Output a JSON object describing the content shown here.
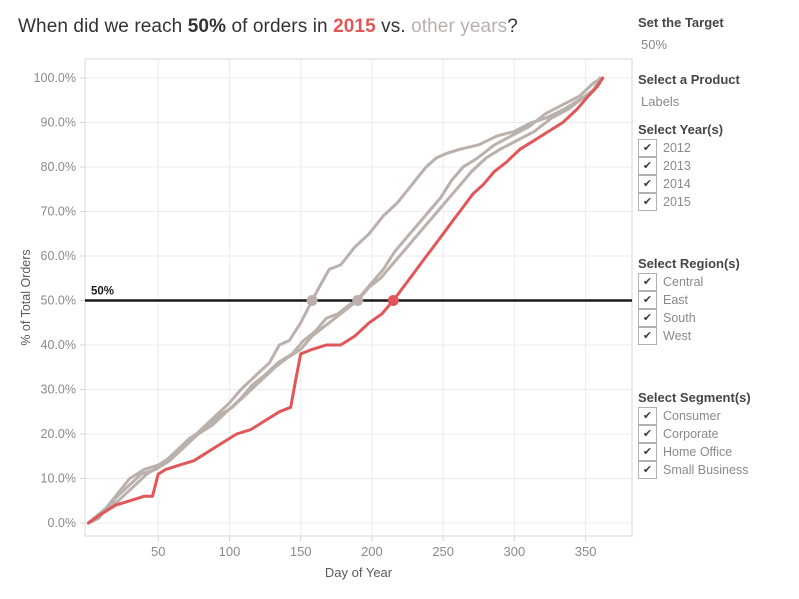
{
  "title": {
    "prefix": "When did we reach ",
    "target": "50%",
    "middle": " of orders in ",
    "year": "2015",
    "vs": " vs. ",
    "other": "other years",
    "suffix": "?"
  },
  "colors": {
    "accent_red": "#e15759",
    "accent_gray": "#bab0ac",
    "title_dark": "#333333",
    "grid": "#ececec",
    "border": "#d7d7d7",
    "tick_text": "#8a8a8a",
    "axis_title_text": "#5b5b5b",
    "target_line": "#1a1a1a"
  },
  "checkbox_glyph": "✔",
  "panel": {
    "target": {
      "label": "Set the Target",
      "value": "50%"
    },
    "product": {
      "label": "Select a Product",
      "value": "Labels"
    },
    "years": {
      "label": "Select Year(s)",
      "options": [
        {
          "label": "2012",
          "checked": true
        },
        {
          "label": "2013",
          "checked": true
        },
        {
          "label": "2014",
          "checked": true
        },
        {
          "label": "2015",
          "checked": true
        }
      ]
    },
    "regions": {
      "label": "Select Region(s)",
      "options": [
        {
          "label": "Central",
          "checked": true
        },
        {
          "label": "East",
          "checked": true
        },
        {
          "label": "South",
          "checked": true
        },
        {
          "label": "West",
          "checked": true
        }
      ]
    },
    "segments": {
      "label": "Select Segment(s)",
      "options": [
        {
          "label": "Consumer",
          "checked": true
        },
        {
          "label": "Corporate",
          "checked": true
        },
        {
          "label": "Home Office",
          "checked": true
        },
        {
          "label": "Small Business",
          "checked": true
        }
      ]
    }
  },
  "chart_data": {
    "type": "line",
    "xlabel": "Day of Year",
    "ylabel": "% of Total Orders",
    "xlim": [
      0,
      385
    ],
    "ylim": [
      0,
      100
    ],
    "x_ticks": [
      50,
      100,
      150,
      200,
      250,
      300,
      350
    ],
    "y_ticks": [
      0,
      10,
      20,
      30,
      40,
      50,
      60,
      70,
      80,
      90,
      100
    ],
    "grid": true,
    "target_line": {
      "value": 50,
      "label": "50%"
    },
    "series": [
      {
        "name": "2012",
        "color": "#bab0ac",
        "points": [
          [
            1,
            0
          ],
          [
            10,
            2
          ],
          [
            20,
            6
          ],
          [
            30,
            10
          ],
          [
            40,
            12
          ],
          [
            50,
            13
          ],
          [
            60,
            15
          ],
          [
            70,
            18
          ],
          [
            80,
            21
          ],
          [
            90,
            24
          ],
          [
            100,
            27
          ],
          [
            108,
            30
          ],
          [
            118,
            33
          ],
          [
            128,
            36
          ],
          [
            135,
            40
          ],
          [
            142,
            41
          ],
          [
            150,
            45
          ],
          [
            158,
            50
          ],
          [
            163,
            53
          ],
          [
            170,
            57
          ],
          [
            178,
            58
          ],
          [
            188,
            62
          ],
          [
            198,
            65
          ],
          [
            208,
            69
          ],
          [
            218,
            72
          ],
          [
            228,
            76
          ],
          [
            238,
            80
          ],
          [
            245,
            82
          ],
          [
            252,
            83
          ],
          [
            262,
            84
          ],
          [
            275,
            85
          ],
          [
            288,
            87
          ],
          [
            300,
            88
          ],
          [
            312,
            90
          ],
          [
            322,
            91
          ],
          [
            335,
            93
          ],
          [
            345,
            95
          ],
          [
            355,
            97
          ],
          [
            360,
            100
          ]
        ]
      },
      {
        "name": "2013",
        "color": "#bab0ac",
        "points": [
          [
            1,
            0
          ],
          [
            12,
            3
          ],
          [
            22,
            5
          ],
          [
            32,
            8
          ],
          [
            42,
            11
          ],
          [
            52,
            13
          ],
          [
            62,
            16
          ],
          [
            72,
            19
          ],
          [
            82,
            21
          ],
          [
            92,
            24
          ],
          [
            102,
            26
          ],
          [
            112,
            29
          ],
          [
            122,
            32
          ],
          [
            132,
            35
          ],
          [
            140,
            37
          ],
          [
            150,
            39
          ],
          [
            158,
            42
          ],
          [
            166,
            44
          ],
          [
            174,
            46
          ],
          [
            182,
            48
          ],
          [
            190,
            50
          ],
          [
            198,
            53
          ],
          [
            206,
            55
          ],
          [
            214,
            58
          ],
          [
            222,
            61
          ],
          [
            230,
            64
          ],
          [
            238,
            67
          ],
          [
            246,
            70
          ],
          [
            254,
            73
          ],
          [
            262,
            76
          ],
          [
            270,
            79
          ],
          [
            280,
            82
          ],
          [
            290,
            84
          ],
          [
            302,
            86
          ],
          [
            314,
            88
          ],
          [
            326,
            91
          ],
          [
            338,
            93
          ],
          [
            350,
            96
          ],
          [
            358,
            98
          ],
          [
            362,
            100
          ]
        ]
      },
      {
        "name": "2014",
        "color": "#bab0ac",
        "points": [
          [
            1,
            0
          ],
          [
            8,
            1
          ],
          [
            18,
            5
          ],
          [
            28,
            8
          ],
          [
            38,
            11
          ],
          [
            48,
            12
          ],
          [
            58,
            14
          ],
          [
            68,
            17
          ],
          [
            78,
            20
          ],
          [
            88,
            22
          ],
          [
            98,
            25
          ],
          [
            108,
            28
          ],
          [
            116,
            31
          ],
          [
            124,
            33
          ],
          [
            134,
            36
          ],
          [
            144,
            38
          ],
          [
            152,
            41
          ],
          [
            160,
            43
          ],
          [
            168,
            46
          ],
          [
            176,
            47
          ],
          [
            184,
            49
          ],
          [
            192,
            51
          ],
          [
            200,
            54
          ],
          [
            208,
            57
          ],
          [
            216,
            61
          ],
          [
            224,
            64
          ],
          [
            232,
            67
          ],
          [
            240,
            70
          ],
          [
            248,
            73
          ],
          [
            256,
            77
          ],
          [
            264,
            80
          ],
          [
            274,
            82
          ],
          [
            286,
            85
          ],
          [
            298,
            87
          ],
          [
            310,
            89
          ],
          [
            322,
            92
          ],
          [
            334,
            94
          ],
          [
            346,
            96
          ],
          [
            356,
            99
          ],
          [
            362,
            100
          ]
        ]
      },
      {
        "name": "2015",
        "color": "#e15759",
        "points": [
          [
            1,
            0
          ],
          [
            10,
            2
          ],
          [
            20,
            4
          ],
          [
            30,
            5
          ],
          [
            40,
            6
          ],
          [
            46,
            6
          ],
          [
            50,
            11
          ],
          [
            55,
            12
          ],
          [
            65,
            13
          ],
          [
            75,
            14
          ],
          [
            85,
            16
          ],
          [
            95,
            18
          ],
          [
            105,
            20
          ],
          [
            115,
            21
          ],
          [
            125,
            23
          ],
          [
            135,
            25
          ],
          [
            143,
            26
          ],
          [
            147,
            33
          ],
          [
            150,
            38
          ],
          [
            158,
            39
          ],
          [
            168,
            40
          ],
          [
            178,
            40
          ],
          [
            188,
            42
          ],
          [
            198,
            45
          ],
          [
            207,
            47
          ],
          [
            215,
            50
          ],
          [
            222,
            53
          ],
          [
            229,
            56
          ],
          [
            236,
            59
          ],
          [
            243,
            62
          ],
          [
            250,
            65
          ],
          [
            257,
            68
          ],
          [
            264,
            71
          ],
          [
            271,
            74
          ],
          [
            278,
            76
          ],
          [
            286,
            79
          ],
          [
            294,
            81
          ],
          [
            304,
            84
          ],
          [
            314,
            86
          ],
          [
            324,
            88
          ],
          [
            334,
            90
          ],
          [
            344,
            93
          ],
          [
            352,
            96
          ],
          [
            358,
            98
          ],
          [
            362,
            100
          ]
        ]
      }
    ],
    "markers": [
      {
        "series": "2012",
        "day": 158,
        "pct": 50
      },
      {
        "series": "2013",
        "day": 190,
        "pct": 50
      },
      {
        "series": "2015",
        "day": 215,
        "pct": 50
      }
    ]
  }
}
